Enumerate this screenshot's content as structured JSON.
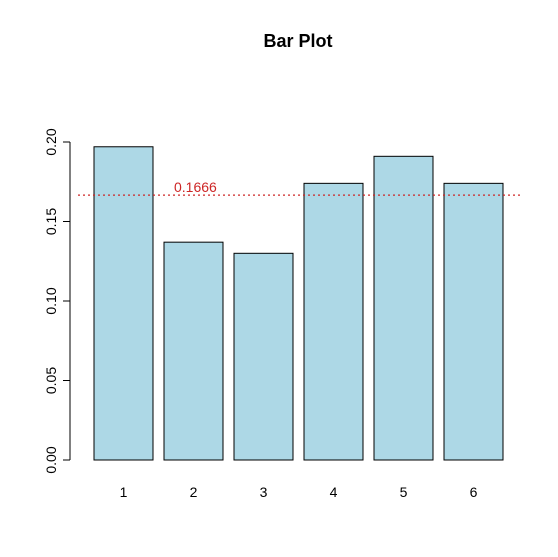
{
  "chart_data": {
    "type": "bar",
    "title": "Bar Plot",
    "xlabel": "",
    "ylabel": "",
    "categories": [
      "1",
      "2",
      "3",
      "4",
      "5",
      "6"
    ],
    "values": [
      0.197,
      0.137,
      0.13,
      0.174,
      0.191,
      0.174
    ],
    "ylim": [
      0,
      0.2
    ],
    "yticks": [
      0,
      0.05,
      0.1,
      0.15,
      0.2
    ],
    "ytick_labels": [
      "0.00",
      "0.05",
      "0.10",
      "0.15",
      "0.20"
    ],
    "grid": false,
    "bar_color": "#add8e6",
    "bar_edge_color": "#000000",
    "reference_line": {
      "value": 0.1666,
      "label": "0.1666",
      "color": "#cd2626",
      "style": "dotted"
    }
  }
}
